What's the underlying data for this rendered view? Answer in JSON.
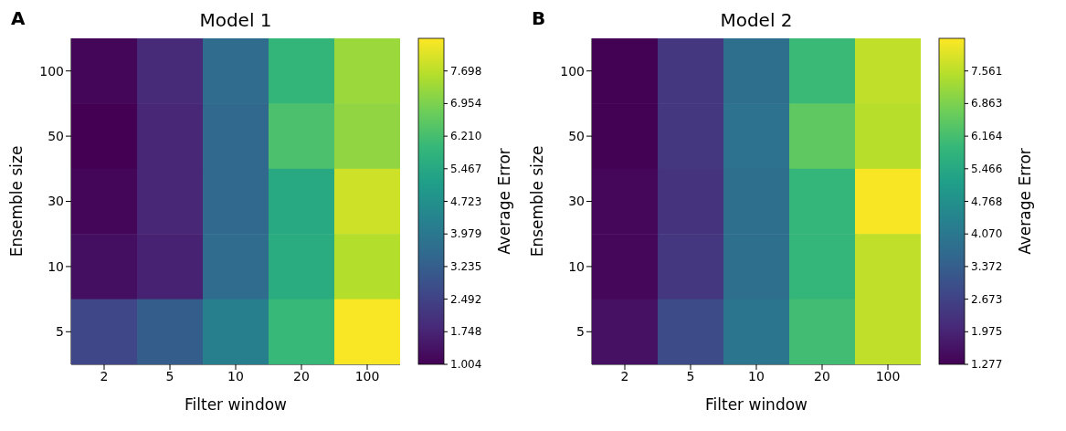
{
  "chart_data": [
    {
      "type": "heatmap",
      "title": "Model 1",
      "xlabel": "Filter window",
      "ylabel": "Ensemble size",
      "clabel": "Average Error",
      "annotations": [
        "A"
      ],
      "categories": [
        "2",
        "5",
        "10",
        "20",
        "100"
      ],
      "y_categories": [
        "100",
        "50",
        "30",
        "10",
        "5"
      ],
      "cells": [
        [
          1.1,
          1.9,
          3.6,
          5.9,
          7.3
        ],
        [
          1.0,
          1.8,
          3.5,
          6.3,
          7.2
        ],
        [
          1.1,
          1.8,
          3.5,
          5.5,
          7.9
        ],
        [
          1.3,
          1.7,
          3.6,
          5.6,
          7.6
        ],
        [
          2.6,
          3.2,
          4.2,
          6.0,
          8.4
        ]
      ],
      "clim": [
        1.004,
        8.442
      ],
      "cticks": [
        {
          "value": 1.004,
          "label": "1.004"
        },
        {
          "value": 1.748,
          "label": "1.748"
        },
        {
          "value": 2.492,
          "label": "2.492"
        },
        {
          "value": 3.235,
          "label": "3.235"
        },
        {
          "value": 3.979,
          "label": "3.979"
        },
        {
          "value": 4.723,
          "label": "4.723"
        },
        {
          "value": 5.467,
          "label": "5.467"
        },
        {
          "value": 6.21,
          "label": "6.210"
        },
        {
          "value": 6.954,
          "label": "6.954"
        },
        {
          "value": 7.698,
          "label": "7.698"
        }
      ]
    },
    {
      "type": "heatmap",
      "title": "Model 2",
      "xlabel": "Filter window",
      "ylabel": "Ensemble size",
      "clabel": "Average Error",
      "annotations": [
        "B"
      ],
      "categories": [
        "2",
        "5",
        "10",
        "20",
        "100"
      ],
      "y_categories": [
        "100",
        "50",
        "30",
        "10",
        "5"
      ],
      "cells": [
        [
          1.3,
          2.4,
          3.8,
          6.0,
          7.6
        ],
        [
          1.3,
          2.4,
          3.9,
          6.5,
          7.5
        ],
        [
          1.4,
          2.3,
          3.8,
          5.9,
          8.2
        ],
        [
          1.4,
          2.4,
          3.8,
          5.9,
          7.6
        ],
        [
          1.6,
          2.9,
          4.0,
          6.1,
          7.6
        ]
      ],
      "clim": [
        1.277,
        8.259
      ],
      "cticks": [
        {
          "value": 1.277,
          "label": "1.277"
        },
        {
          "value": 1.975,
          "label": "1.975"
        },
        {
          "value": 2.673,
          "label": "2.673"
        },
        {
          "value": 3.372,
          "label": "3.372"
        },
        {
          "value": 4.07,
          "label": "4.070"
        },
        {
          "value": 4.768,
          "label": "4.768"
        },
        {
          "value": 5.466,
          "label": "5.466"
        },
        {
          "value": 6.164,
          "label": "6.164"
        },
        {
          "value": 6.863,
          "label": "6.863"
        },
        {
          "value": 7.561,
          "label": "7.561"
        }
      ]
    }
  ]
}
